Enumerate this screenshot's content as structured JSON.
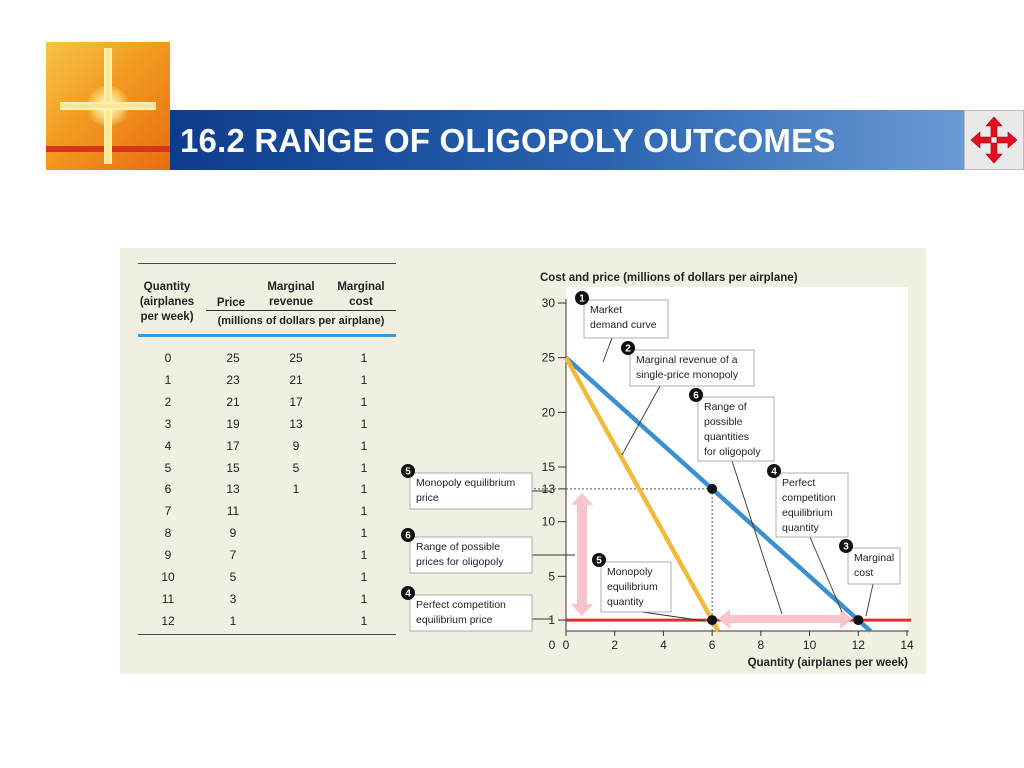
{
  "slide": {
    "title": "16.2 RANGE OF OLIGOPOLY OUTCOMES",
    "logo_icon": "cross-logo-icon",
    "nav_icon": "four-arrow-navigation-icon",
    "title_bar_color": "#1a4c9c"
  },
  "table": {
    "headers": {
      "quantity": [
        "Quantity",
        "(airplanes",
        "per week)"
      ],
      "price": "Price",
      "marginal_revenue": [
        "Marginal",
        "revenue"
      ],
      "marginal_cost": [
        "Marginal",
        "cost"
      ],
      "units": "(millions of dollars per airplane)"
    },
    "rows": [
      {
        "q": "0",
        "p": "25",
        "mr": "25",
        "mc": "1"
      },
      {
        "q": "1",
        "p": "23",
        "mr": "21",
        "mc": "1"
      },
      {
        "q": "2",
        "p": "21",
        "mr": "17",
        "mc": "1"
      },
      {
        "q": "3",
        "p": "19",
        "mr": "13",
        "mc": "1"
      },
      {
        "q": "4",
        "p": "17",
        "mr": "9",
        "mc": "1"
      },
      {
        "q": "5",
        "p": "15",
        "mr": "5",
        "mc": "1"
      },
      {
        "q": "6",
        "p": "13",
        "mr": "1",
        "mc": "1"
      },
      {
        "q": "7",
        "p": "11",
        "mr": "",
        "mc": "1"
      },
      {
        "q": "8",
        "p": "9",
        "mr": "",
        "mc": "1"
      },
      {
        "q": "9",
        "p": "7",
        "mr": "",
        "mc": "1"
      },
      {
        "q": "10",
        "p": "5",
        "mr": "",
        "mc": "1"
      },
      {
        "q": "11",
        "p": "3",
        "mr": "",
        "mc": "1"
      },
      {
        "q": "12",
        "p": "1",
        "mr": "",
        "mc": "1"
      }
    ]
  },
  "chart_data": {
    "type": "line",
    "ylabel": "Cost and price (millions of dollars per airplane)",
    "xlabel": "Quantity (airplanes per week)",
    "xlim": [
      0,
      14
    ],
    "ylim": [
      0,
      30
    ],
    "x_ticks": [
      0,
      2,
      4,
      6,
      8,
      10,
      12,
      14
    ],
    "y_ticks": [
      5,
      10,
      15,
      20,
      25,
      30
    ],
    "y_extra_ticks": [
      {
        "value": 13,
        "label": "13"
      },
      {
        "value": 1,
        "label": "1"
      }
    ],
    "series": [
      {
        "points": [
          [
            0,
            25
          ],
          [
            12.5,
            0
          ]
        ],
        "color": "#3a8fd0"
      },
      {
        "points": [
          [
            0,
            25
          ],
          [
            6.25,
            0
          ]
        ],
        "color": "#f2b93b"
      },
      {
        "points": [
          [
            0,
            1
          ],
          [
            14,
            1
          ]
        ],
        "color": "#e0302a"
      }
    ],
    "points": [
      {
        "x": 6,
        "y": 13
      },
      {
        "x": 6,
        "y": 1
      },
      {
        "x": 12,
        "y": 1
      }
    ],
    "range_arrows": {
      "price_range": [
        1,
        13
      ],
      "quantity_range": [
        6,
        12
      ],
      "color": "#f7c4cc"
    },
    "annotations": [
      {
        "num": "1",
        "text": [
          "Market",
          "demand curve"
        ]
      },
      {
        "num": "2",
        "text": [
          "Marginal revenue of a",
          "single-price monopoly"
        ]
      },
      {
        "num": "6",
        "text": [
          "Range of",
          "possible",
          "quantities",
          "for oligopoly"
        ]
      },
      {
        "num": "4",
        "text": [
          "Perfect",
          "competition",
          "equilibrium",
          "quantity"
        ]
      },
      {
        "num": "3",
        "text": [
          "Marginal",
          "cost"
        ]
      },
      {
        "num": "5",
        "text": [
          "Monopoly",
          "equilibrium",
          "quantity"
        ]
      },
      {
        "num": "5",
        "text": [
          "Monopoly equilibrium",
          "price"
        ]
      },
      {
        "num": "6",
        "text": [
          "Range of possible",
          "prices for oligopoly"
        ]
      },
      {
        "num": "4",
        "text": [
          "Perfect competition",
          "equilibrium price"
        ]
      }
    ]
  }
}
